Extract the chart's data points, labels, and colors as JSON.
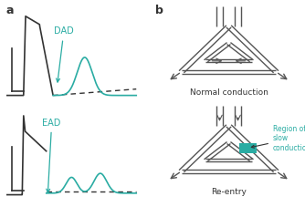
{
  "teal_color": "#2aaca3",
  "black_color": "#333333",
  "gray_color": "#555555",
  "bg_color": "#ffffff",
  "label_a": "a",
  "label_b": "b",
  "dad_label": "DAD",
  "ead_label": "EAD",
  "normal_label": "Normal conduction",
  "reentry_label": "Re-entry",
  "region_label": "Region of\nslow\nconduction",
  "line_lw": 1.0,
  "ap_lw": 1.2
}
